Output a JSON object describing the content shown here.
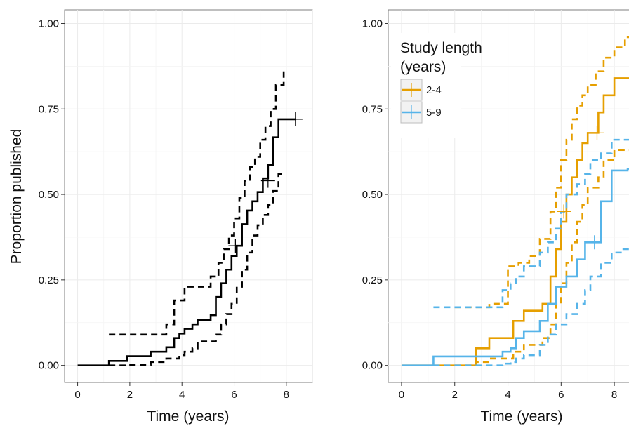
{
  "chart_data": [
    {
      "type": "line",
      "subtype": "step",
      "title": "",
      "xlabel": "Time (years)",
      "ylabel": "Proportion published",
      "xlim": [
        -0.5,
        9.0
      ],
      "ylim": [
        -0.05,
        1.04
      ],
      "x_ticks": [
        "0",
        "2",
        "4",
        "6",
        "8"
      ],
      "y_ticks": [
        "0.00",
        "0.25",
        "0.50",
        "0.75",
        "1.00"
      ],
      "grid": true,
      "legend": "none",
      "colors": {
        "main": "#000000"
      },
      "series": [
        {
          "role": "estimate",
          "style": "solid",
          "color": "#000000",
          "x": [
            0,
            1.2,
            1.9,
            2.8,
            3.4,
            3.7,
            3.9,
            4.1,
            4.4,
            4.6,
            5.1,
            5.3,
            5.5,
            5.7,
            5.9,
            6.1,
            6.3,
            6.5,
            6.7,
            6.9,
            7.1,
            7.3,
            7.5,
            7.7,
            8.35
          ],
          "y": [
            0,
            0.013,
            0.027,
            0.04,
            0.053,
            0.08,
            0.093,
            0.107,
            0.12,
            0.133,
            0.147,
            0.2,
            0.24,
            0.28,
            0.32,
            0.35,
            0.413,
            0.453,
            0.48,
            0.507,
            0.547,
            0.587,
            0.667,
            0.72,
            0.72
          ]
        },
        {
          "role": "upper bound",
          "style": "dashed",
          "color": "#000000",
          "x": [
            1.2,
            3.4,
            3.7,
            4.1,
            5.1,
            5.4,
            5.6,
            5.8,
            6.0,
            6.2,
            6.4,
            6.6,
            6.8,
            7.0,
            7.2,
            7.4,
            7.6,
            7.9
          ],
          "y": [
            0.09,
            0.12,
            0.19,
            0.23,
            0.26,
            0.3,
            0.34,
            0.38,
            0.43,
            0.49,
            0.54,
            0.58,
            0.61,
            0.66,
            0.7,
            0.75,
            0.82,
            0.87
          ]
        },
        {
          "role": "lower bound",
          "style": "dashed",
          "color": "#000000",
          "x": [
            1.2,
            1.9,
            2.8,
            3.4,
            3.9,
            4.1,
            4.4,
            4.6,
            5.3,
            5.5,
            5.7,
            5.9,
            6.1,
            6.3,
            6.5,
            6.7,
            6.9,
            7.1,
            7.3,
            7.5,
            7.7,
            8.0
          ],
          "y": [
            0.0,
            0.002,
            0.01,
            0.02,
            0.03,
            0.04,
            0.05,
            0.07,
            0.09,
            0.12,
            0.15,
            0.18,
            0.23,
            0.28,
            0.33,
            0.38,
            0.41,
            0.44,
            0.47,
            0.51,
            0.56,
            0.56
          ]
        }
      ],
      "censor_marks": [
        {
          "x": 6.05,
          "y": 0.35
        },
        {
          "x": 7.3,
          "y": 0.54
        },
        {
          "x": 8.35,
          "y": 0.72
        }
      ]
    },
    {
      "type": "line",
      "subtype": "step",
      "title": "",
      "xlabel": "Time (years)",
      "ylabel": "",
      "xlim": [
        -0.5,
        9.0
      ],
      "ylim": [
        -0.05,
        1.04
      ],
      "x_ticks": [
        "0",
        "2",
        "4",
        "6",
        "8"
      ],
      "y_ticks": [
        "0.00",
        "0.25",
        "0.50",
        "0.75",
        "1.00"
      ],
      "grid": true,
      "legend": "top-left",
      "legend_title": "Study length\n(years)",
      "colors": {
        "2-4": "#E69F00",
        "5-9": "#56B4E9"
      },
      "series": [
        {
          "name": "2-4",
          "role": "estimate",
          "style": "solid",
          "color": "#E69F00",
          "x": [
            0,
            2.8,
            3.3,
            4.2,
            4.6,
            5.3,
            5.6,
            5.8,
            6.0,
            6.2,
            6.4,
            6.6,
            6.8,
            7.0,
            7.4,
            7.6,
            8.0,
            8.4,
            9.0
          ],
          "y": [
            0,
            0.05,
            0.08,
            0.13,
            0.16,
            0.18,
            0.26,
            0.34,
            0.42,
            0.5,
            0.55,
            0.6,
            0.65,
            0.68,
            0.74,
            0.79,
            0.84,
            0.84,
            0.84
          ]
        },
        {
          "name": "2-4 upper",
          "role": "upper bound",
          "style": "dashed",
          "color": "#E69F00",
          "x": [
            2.0,
            3.3,
            4.0,
            4.4,
            4.8,
            5.2,
            5.6,
            5.8,
            6.0,
            6.2,
            6.4,
            6.6,
            6.8,
            7.0,
            7.3,
            7.6,
            8.0,
            8.4,
            9.0
          ],
          "y": [
            0.17,
            0.18,
            0.29,
            0.3,
            0.32,
            0.37,
            0.45,
            0.52,
            0.6,
            0.66,
            0.72,
            0.76,
            0.79,
            0.82,
            0.86,
            0.9,
            0.93,
            0.96,
            0.96
          ]
        },
        {
          "name": "2-4 lower",
          "role": "lower bound",
          "style": "dashed",
          "color": "#E69F00",
          "x": [
            2.0,
            2.8,
            3.3,
            4.2,
            4.6,
            5.3,
            5.6,
            5.8,
            6.0,
            6.2,
            6.4,
            6.6,
            6.8,
            7.0,
            7.4,
            7.6,
            8.0,
            8.4,
            9.0
          ],
          "y": [
            0.0,
            0.01,
            0.02,
            0.04,
            0.06,
            0.08,
            0.12,
            0.18,
            0.24,
            0.3,
            0.36,
            0.42,
            0.47,
            0.52,
            0.55,
            0.6,
            0.63,
            0.63,
            0.63
          ]
        },
        {
          "name": "5-9",
          "role": "estimate",
          "style": "solid",
          "color": "#56B4E9",
          "x": [
            0,
            1.2,
            3.8,
            4.1,
            4.3,
            4.6,
            5.2,
            5.5,
            5.8,
            6.2,
            6.6,
            6.9,
            7.1,
            7.5,
            7.9,
            8.5,
            9.0
          ],
          "y": [
            0,
            0.026,
            0.04,
            0.05,
            0.08,
            0.1,
            0.13,
            0.18,
            0.23,
            0.26,
            0.31,
            0.36,
            0.36,
            0.48,
            0.57,
            0.575,
            0.575
          ]
        },
        {
          "name": "5-9 upper",
          "role": "upper bound",
          "style": "dashed",
          "color": "#56B4E9",
          "x": [
            1.2,
            3.8,
            4.1,
            4.3,
            4.6,
            5.2,
            5.5,
            5.8,
            6.0,
            6.2,
            6.6,
            6.9,
            7.1,
            7.5,
            7.9,
            8.4,
            9.0
          ],
          "y": [
            0.17,
            0.22,
            0.24,
            0.26,
            0.29,
            0.33,
            0.36,
            0.4,
            0.45,
            0.5,
            0.53,
            0.56,
            0.6,
            0.62,
            0.66,
            0.66,
            0.66
          ]
        },
        {
          "name": "5-9 lower",
          "role": "lower bound",
          "style": "dashed",
          "color": "#56B4E9",
          "x": [
            1.2,
            3.8,
            4.1,
            4.3,
            4.6,
            5.2,
            5.5,
            5.8,
            6.2,
            6.6,
            6.9,
            7.1,
            7.5,
            7.9,
            8.3,
            9.0
          ],
          "y": [
            0.0,
            0.005,
            0.01,
            0.02,
            0.03,
            0.06,
            0.09,
            0.12,
            0.15,
            0.18,
            0.22,
            0.26,
            0.3,
            0.33,
            0.34,
            0.34
          ]
        }
      ],
      "censor_marks": [
        {
          "x": 6.1,
          "y": 0.45,
          "series": "2-4"
        },
        {
          "x": 7.35,
          "y": 0.68,
          "series": "2-4"
        },
        {
          "x": 9.0,
          "y": 0.84,
          "series": "2-4"
        },
        {
          "x": 7.25,
          "y": 0.36,
          "series": "5-9"
        },
        {
          "x": 9.0,
          "y": 0.575,
          "series": "5-9"
        }
      ],
      "legend_entries": [
        {
          "label": "2-4",
          "color": "#E69F00"
        },
        {
          "label": "5-9",
          "color": "#56B4E9"
        }
      ]
    }
  ]
}
